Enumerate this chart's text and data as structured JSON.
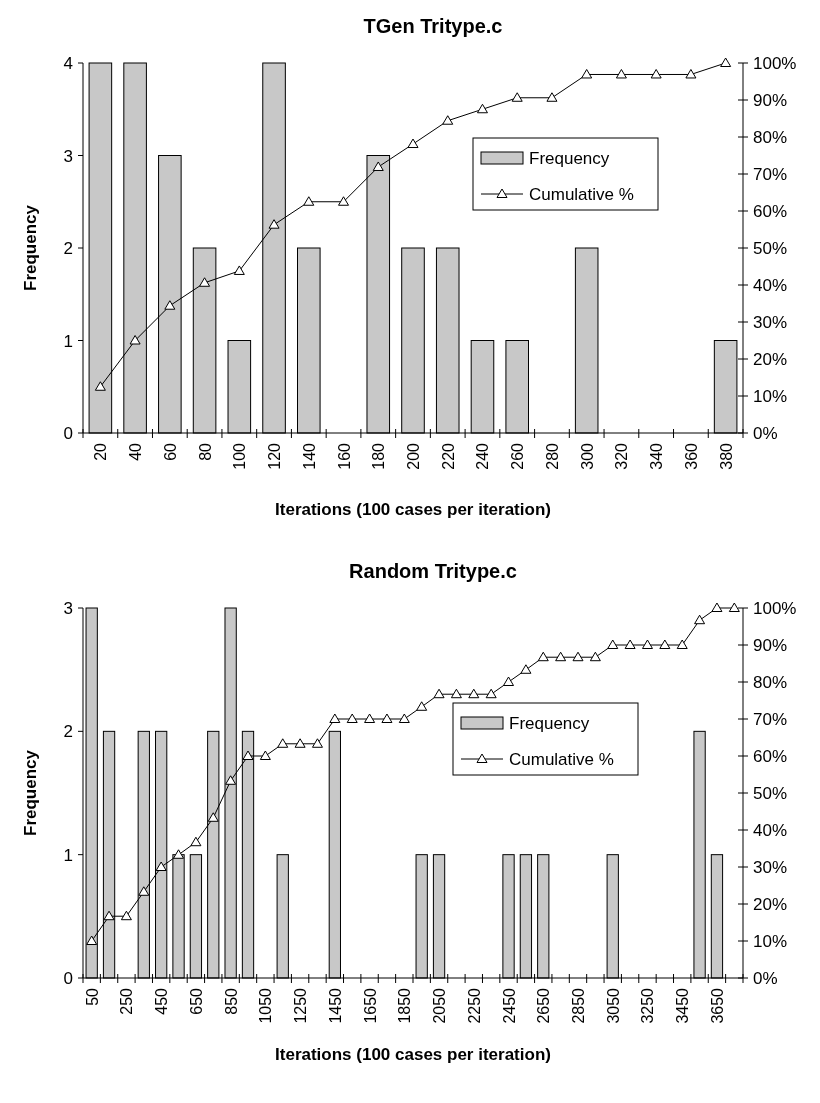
{
  "chart_data": [
    {
      "type": "bar",
      "title": "TGen  Tritype.c",
      "xlabel": "Iterations (100 cases per iteration)",
      "ylabel": "Frequency",
      "categories": [
        "20",
        "40",
        "60",
        "80",
        "100",
        "120",
        "140",
        "160",
        "180",
        "200",
        "220",
        "240",
        "260",
        "280",
        "300",
        "320",
        "340",
        "360",
        "380"
      ],
      "series": [
        {
          "name": "Frequency",
          "color": "#c8c8c8",
          "values": [
            4,
            4,
            3,
            2,
            1,
            4,
            2,
            0,
            3,
            2,
            2,
            1,
            1,
            0,
            2,
            0,
            0,
            0,
            1
          ]
        },
        {
          "name": "Cumulative %",
          "type": "line",
          "axis": "y2",
          "color": "#000000",
          "values": [
            12.5,
            25,
            34.4,
            40.6,
            43.8,
            56.3,
            62.5,
            62.5,
            71.9,
            78.1,
            84.4,
            87.5,
            90.6,
            90.6,
            96.9,
            96.9,
            96.9,
            96.9,
            100
          ]
        }
      ],
      "ylim": [
        0,
        4
      ],
      "yticks": [
        0,
        1,
        2,
        3,
        4
      ],
      "y2lim": [
        0,
        100
      ],
      "y2ticks": [
        {
          "value": 0,
          "label": "0%"
        },
        {
          "value": 10,
          "label": "10%"
        },
        {
          "value": 20,
          "label": "20%"
        },
        {
          "value": 30,
          "label": "30%"
        },
        {
          "value": 40,
          "label": "40%"
        },
        {
          "value": 50,
          "label": "50%"
        },
        {
          "value": 60,
          "label": "60%"
        },
        {
          "value": 70,
          "label": "70%"
        },
        {
          "value": 80,
          "label": "80%"
        },
        {
          "value": 90,
          "label": "90%"
        },
        {
          "value": 100,
          "label": "100%"
        }
      ],
      "marker": "triangle",
      "legend": "top right",
      "grid": false
    },
    {
      "type": "bar",
      "title": "Random  Tritype.c",
      "xlabel": "Iterations (100 cases per iteration)",
      "ylabel": "Frequency",
      "categories": [
        "50",
        null,
        "250",
        null,
        "450",
        null,
        "650",
        null,
        "850",
        null,
        "1050",
        null,
        "1250",
        null,
        "1450",
        null,
        "1650",
        null,
        "1850",
        null,
        "2050",
        null,
        "2250",
        null,
        "2450",
        null,
        "2650",
        null,
        "2850",
        null,
        "3050",
        null,
        "3250",
        null,
        "3450",
        null,
        "3650",
        null
      ],
      "series": [
        {
          "name": "Frequency",
          "color": "#c8c8c8",
          "values": [
            3,
            2,
            0,
            2,
            2,
            1,
            1,
            2,
            3,
            2,
            0,
            1,
            0,
            0,
            2,
            0,
            0,
            0,
            0,
            1,
            1,
            0,
            0,
            0,
            1,
            1,
            1,
            0,
            0,
            0,
            1,
            0,
            0,
            0,
            0,
            2,
            1,
            0
          ]
        },
        {
          "name": "Cumulative %",
          "type": "line",
          "axis": "y2",
          "color": "#000000",
          "values": [
            10,
            16.7,
            16.7,
            23.3,
            30,
            33.3,
            36.7,
            43.3,
            53.3,
            60,
            60,
            63.3,
            63.3,
            63.3,
            70,
            70,
            70,
            70,
            70,
            73.3,
            76.7,
            76.7,
            76.7,
            76.7,
            80,
            83.3,
            86.7,
            86.7,
            86.7,
            86.7,
            90,
            90,
            90,
            90,
            90,
            96.7,
            100,
            100
          ]
        }
      ],
      "ylim": [
        0,
        3
      ],
      "yticks": [
        0,
        1,
        2,
        3
      ],
      "y2lim": [
        0,
        100
      ],
      "y2ticks": [
        {
          "value": 0,
          "label": "0%"
        },
        {
          "value": 10,
          "label": "10%"
        },
        {
          "value": 20,
          "label": "20%"
        },
        {
          "value": 30,
          "label": "30%"
        },
        {
          "value": 40,
          "label": "40%"
        },
        {
          "value": 50,
          "label": "50%"
        },
        {
          "value": 60,
          "label": "60%"
        },
        {
          "value": 70,
          "label": "70%"
        },
        {
          "value": 80,
          "label": "80%"
        },
        {
          "value": 90,
          "label": "90%"
        },
        {
          "value": 100,
          "label": "100%"
        }
      ],
      "marker": "triangle",
      "legend": "right",
      "grid": false
    }
  ]
}
